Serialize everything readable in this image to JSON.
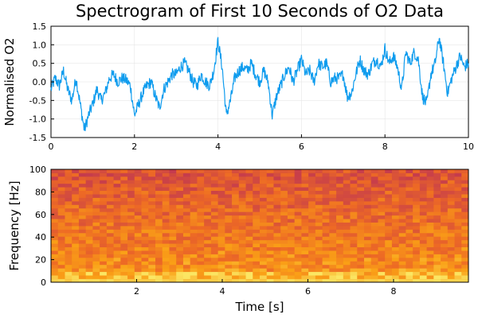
{
  "title": "Spectrogram of First 10 Seconds of O2 Data",
  "colors": {
    "signal": "#0f9cee",
    "grid": "#e6e6e6",
    "heat_low": "#7c1d6c",
    "heat_mid": "#ed6925",
    "heat_high": "#fbe663"
  },
  "chart_data": [
    {
      "type": "line",
      "title": "Spectrogram of First 10 Seconds of O2 Data",
      "xlabel": "",
      "ylabel": "Normalised O2",
      "xlim": [
        0,
        10
      ],
      "ylim": [
        -1.5,
        1.5
      ],
      "xticks": [
        0,
        2,
        4,
        6,
        8,
        10
      ],
      "yticks": [
        -1.5,
        -1.0,
        -0.5,
        0.0,
        0.5,
        1.0,
        1.5
      ],
      "xtick_labels": [
        "0",
        "2",
        "4",
        "6",
        "8",
        "10"
      ],
      "ytick_labels": [
        "-1.5",
        "-1.0",
        "-0.5",
        "0.0",
        "0.5",
        "1.0",
        "1.5"
      ],
      "grid": true,
      "legend": "none",
      "series": [
        {
          "x": [
            0,
            0.1,
            0.2,
            0.3,
            0.4,
            0.5,
            0.6,
            0.7,
            0.8,
            0.9,
            1.0,
            1.1,
            1.2,
            1.3,
            1.4,
            1.5,
            1.6,
            1.7,
            1.8,
            1.9,
            2.0,
            2.1,
            2.2,
            2.3,
            2.4,
            2.5,
            2.6,
            2.7,
            2.8,
            2.9,
            3.0,
            3.1,
            3.2,
            3.3,
            3.4,
            3.5,
            3.6,
            3.7,
            3.8,
            3.9,
            4.0,
            4.1,
            4.2,
            4.3,
            4.4,
            4.5,
            4.6,
            4.7,
            4.8,
            4.9,
            5.0,
            5.1,
            5.2,
            5.3,
            5.4,
            5.5,
            5.6,
            5.7,
            5.8,
            5.9,
            6.0,
            6.1,
            6.2,
            6.3,
            6.4,
            6.5,
            6.6,
            6.7,
            6.8,
            6.9,
            7.0,
            7.1,
            7.2,
            7.3,
            7.4,
            7.5,
            7.6,
            7.7,
            7.8,
            7.9,
            8.0,
            8.1,
            8.2,
            8.3,
            8.4,
            8.5,
            8.6,
            8.7,
            8.8,
            8.9,
            9.0,
            9.1,
            9.2,
            9.3,
            9.4,
            9.5,
            9.6,
            9.7,
            9.8,
            9.9,
            10.0
          ],
          "y": [
            -0.2,
            0.1,
            -0.1,
            0.3,
            -0.2,
            -0.5,
            0.1,
            -0.6,
            -1.3,
            -0.9,
            -0.6,
            -0.2,
            -0.5,
            -0.3,
            0.1,
            0.2,
            0.0,
            0.1,
            0.05,
            -0.1,
            -0.9,
            -0.6,
            -0.3,
            -0.1,
            0.0,
            -0.4,
            -0.7,
            -0.2,
            0.0,
            0.2,
            0.2,
            0.4,
            0.5,
            0.3,
            0.0,
            -0.1,
            0.2,
            0.0,
            -0.1,
            0.3,
            1.1,
            0.4,
            -0.9,
            -0.5,
            0.1,
            0.3,
            0.4,
            0.3,
            0.5,
            0.2,
            0.0,
            0.3,
            0.0,
            -0.9,
            -0.4,
            -0.1,
            0.2,
            0.4,
            0.0,
            0.3,
            0.6,
            0.2,
            0.3,
            0.0,
            0.5,
            0.4,
            0.5,
            0.0,
            0.1,
            0.1,
            0.2,
            -0.4,
            -0.3,
            0.2,
            0.6,
            0.3,
            0.2,
            0.5,
            0.6,
            0.4,
            0.9,
            0.5,
            0.7,
            0.4,
            -0.2,
            0.8,
            0.5,
            0.8,
            0.6,
            -0.4,
            -0.6,
            0.2,
            0.5,
            1.2,
            0.5,
            -0.3,
            0.1,
            0.4,
            0.7,
            0.4,
            0.5
          ]
        }
      ]
    },
    {
      "type": "heatmap",
      "xlabel": "Time [s]",
      "ylabel": "Frequency [Hz]",
      "xlim": [
        0,
        9.75
      ],
      "ylim": [
        0,
        100
      ],
      "xticks": [
        2,
        4,
        6,
        8
      ],
      "yticks": [
        0,
        20,
        40,
        60,
        80,
        100
      ],
      "xtick_labels": [
        "2",
        "4",
        "6",
        "8"
      ],
      "ytick_labels": [
        "0",
        "20",
        "40",
        "60",
        "80",
        "100"
      ],
      "grid": false,
      "legend": "none",
      "time_bins": 60,
      "frequency_bins": 32,
      "power_trend_by_frequency": "highest at 0–10 Hz, decreasing toward 100 Hz"
    }
  ]
}
